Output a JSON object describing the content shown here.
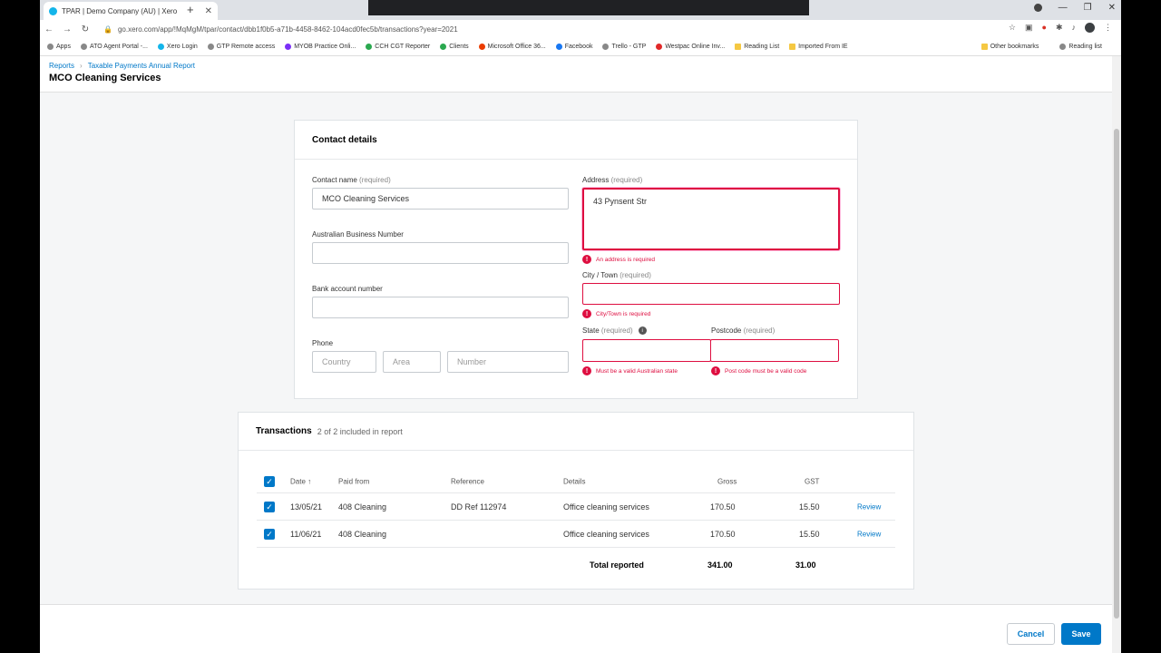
{
  "browser": {
    "tab_title": "TPAR | Demo Company (AU) | Xero",
    "url": "go.xero.com/app/!MqMgM/tpar/contact/dbb1f0b5-a71b-4458-8462-104acd0fec5b/transactions?year=2021",
    "bookmarks": [
      "Apps",
      "ATO Agent Portal -...",
      "Xero Login",
      "GTP Remote access",
      "MYOB Practice Onli...",
      "CCH CGT Reporter",
      "Clients",
      "Microsoft Office 36...",
      "Facebook",
      "Trello - GTP",
      "Westpac Online Inv...",
      "Reading List",
      "Imported From IE"
    ],
    "bookmarks_right": [
      "Other bookmarks",
      "Reading list"
    ]
  },
  "header": {
    "breadcrumb": [
      "Reports",
      "Taxable Payments Annual Report"
    ],
    "title": "MCO Cleaning Services"
  },
  "contact": {
    "card_title": "Contact details",
    "name_label": "Contact name",
    "name_req": "(required)",
    "name_value": "MCO Cleaning Services",
    "abn_label": "Australian Business Number",
    "bank_label": "Bank account number",
    "phone_label": "Phone",
    "phone_country": "Country",
    "phone_area": "Area",
    "phone_number": "Number",
    "address_label": "Address",
    "address_req": "(required)",
    "address_value": "43 Pynsent Str",
    "address_error": "An address is required",
    "city_label": "City / Town",
    "city_req": "(required)",
    "city_error": "City/Town is required",
    "state_label": "State",
    "state_req": "(required)",
    "state_error": "Must be a valid Australian state",
    "postcode_label": "Postcode",
    "postcode_req": "(required)",
    "postcode_error": "Post code must be a valid code"
  },
  "transactions": {
    "title": "Transactions",
    "subtitle": "2 of 2 included in report",
    "columns": [
      "Date",
      "Paid from",
      "Reference",
      "Details",
      "Gross",
      "GST"
    ],
    "rows": [
      {
        "date": "13/05/21",
        "paid_from": "408 Cleaning",
        "reference": "DD Ref 112974",
        "details": "Office cleaning services",
        "gross": "170.50",
        "gst": "15.50",
        "action": "Review"
      },
      {
        "date": "11/06/21",
        "paid_from": "408 Cleaning",
        "reference": "",
        "details": "Office cleaning services",
        "gross": "170.50",
        "gst": "15.50",
        "action": "Review"
      }
    ],
    "total_label": "Total reported",
    "total_gross": "341.00",
    "total_gst": "31.00"
  },
  "footer": {
    "cancel": "Cancel",
    "save": "Save"
  }
}
